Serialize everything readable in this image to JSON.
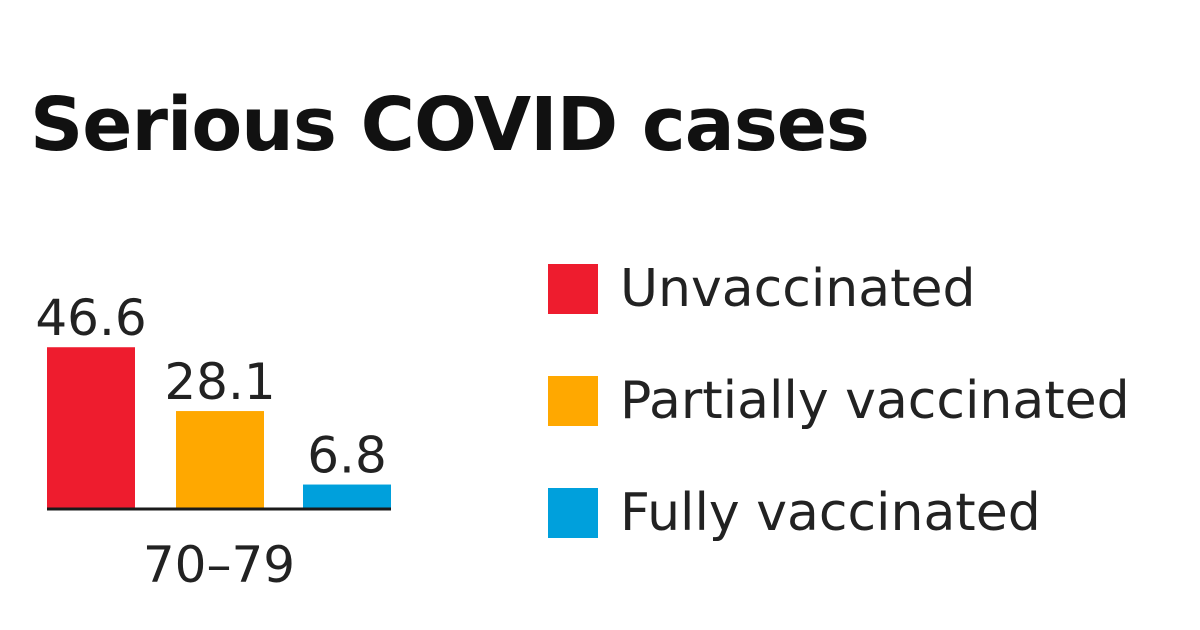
{
  "chart_data": {
    "type": "bar",
    "title": "Serious COVID cases",
    "categories": [
      "70–79"
    ],
    "series": [
      {
        "name": "Unvaccinated",
        "values": [
          46.6
        ],
        "color": "#ee1c2e"
      },
      {
        "name": "Partially vaccinated",
        "values": [
          28.1
        ],
        "color": "#ffa800"
      },
      {
        "name": "Fully vaccinated",
        "values": [
          6.8
        ],
        "color": "#00a0dc"
      }
    ],
    "data_labels": [
      "46.6",
      "28.1",
      "6.8"
    ],
    "ylim": [
      0,
      50
    ],
    "grid": false,
    "legend_position": "right"
  }
}
